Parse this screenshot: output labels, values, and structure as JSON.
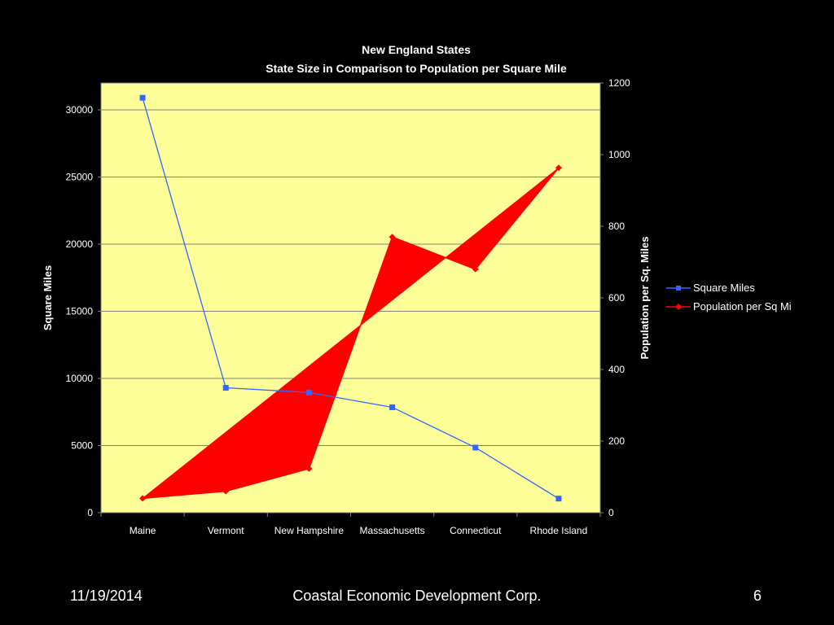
{
  "chart_data": {
    "type": "line",
    "title": "New England States",
    "subtitle": "State Size in Comparison to Population per Square Mile",
    "categories": [
      "Maine",
      "Vermont",
      "New Hampshire",
      "Massachusetts",
      "Connecticut",
      "Rhode Island"
    ],
    "ylabel": "Square Miles",
    "y2label": "Population per Sq. Miles",
    "ylim": [
      0,
      32000
    ],
    "y2lim": [
      0,
      1200
    ],
    "yticks": [
      0,
      5000,
      10000,
      15000,
      20000,
      25000,
      30000
    ],
    "y2ticks": [
      0,
      200,
      400,
      600,
      800,
      1000,
      1200
    ],
    "grid": true,
    "legend_position": "right",
    "plot_background": "#ffff99",
    "series": [
      {
        "name": "Square Miles",
        "axis": "left",
        "color": "#3366ff",
        "marker": "square",
        "values": [
          30900,
          9300,
          8950,
          7850,
          4850,
          1050
        ]
      },
      {
        "name": "Population per Sq Mi",
        "axis": "right",
        "color": "#ff0000",
        "marker": "diamond",
        "values": [
          40,
          60,
          123,
          770,
          680,
          963
        ]
      }
    ]
  },
  "footer": {
    "date": "11/19/2014",
    "organization": "Coastal Economic Development Corp.",
    "page": "6"
  }
}
